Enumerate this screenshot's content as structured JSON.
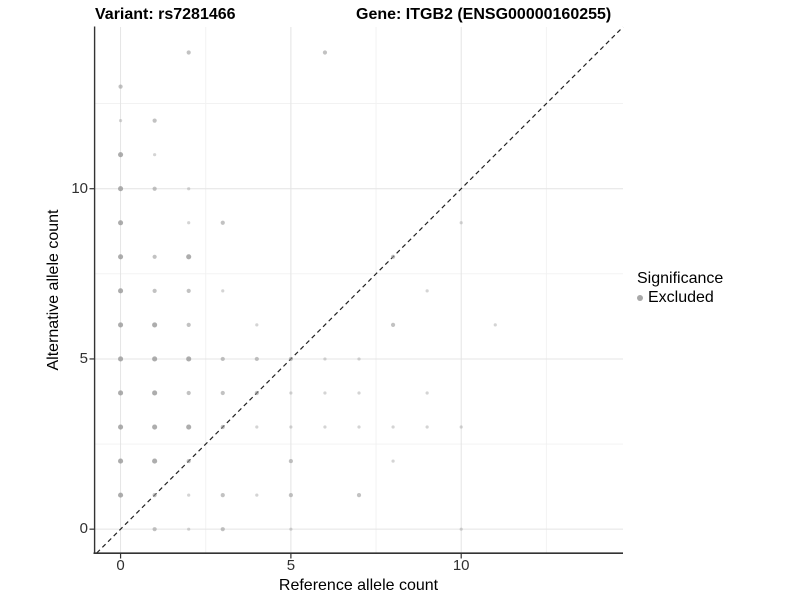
{
  "header": {
    "variant_title": "Variant: rs7281466",
    "gene_title": "Gene: ITGB2 (ENSG00000160255)"
  },
  "legend": {
    "title": "Significance",
    "items": [
      {
        "label": "Excluded",
        "color": "#a8a8a8"
      }
    ]
  },
  "colors": {
    "background": "#ffffff",
    "major_grid": "#e4e4e4",
    "minor_grid": "#f1f1f1",
    "axis_line": "#333333",
    "identity_line": "#222222",
    "point_fill": "#999999",
    "tick_text": "#303030"
  },
  "chart_data": {
    "type": "scatter",
    "title": "Variant: rs7281466   Gene: ITGB2 (ENSG00000160255)",
    "xlabel": "Reference allele count",
    "ylabel": "Alternative allele count",
    "xlim": [
      -0.78,
      14.75
    ],
    "ylim": [
      -0.7,
      14.75
    ],
    "x_ticks": [
      0,
      5,
      10
    ],
    "y_ticks": [
      0,
      5,
      10
    ],
    "x_tick_labels": [
      "0",
      "5",
      "10"
    ],
    "y_tick_labels": [
      "0",
      "5",
      "10"
    ],
    "minor_gridlines_x": [
      2.5,
      7.5,
      12.5
    ],
    "minor_gridlines_y": [
      2.5,
      7.5,
      12.5
    ],
    "grid": true,
    "legend_position": "right",
    "identity_line": {
      "style": "dashed",
      "slope": 1,
      "intercept": 0
    },
    "size_classes": {
      "1": {
        "r": 1.6,
        "o": 0.42
      },
      "2": {
        "r": 2.1,
        "o": 0.6
      },
      "3": {
        "r": 2.55,
        "o": 0.8
      }
    },
    "series": [
      {
        "name": "Excluded",
        "color": "#999999",
        "points": [
          {
            "x": 2,
            "y": 14,
            "s": 2
          },
          {
            "x": 6,
            "y": 14,
            "s": 2
          },
          {
            "x": 0,
            "y": 13,
            "s": 2
          },
          {
            "x": 0,
            "y": 12,
            "s": 1
          },
          {
            "x": 1,
            "y": 12,
            "s": 2
          },
          {
            "x": 0,
            "y": 11,
            "s": 3
          },
          {
            "x": 1,
            "y": 11,
            "s": 1
          },
          {
            "x": 0,
            "y": 10,
            "s": 3
          },
          {
            "x": 1,
            "y": 10,
            "s": 2
          },
          {
            "x": 2,
            "y": 10,
            "s": 1
          },
          {
            "x": 0,
            "y": 9,
            "s": 3
          },
          {
            "x": 2,
            "y": 9,
            "s": 1
          },
          {
            "x": 3,
            "y": 9,
            "s": 2
          },
          {
            "x": 10,
            "y": 9,
            "s": 1
          },
          {
            "x": 0,
            "y": 8,
            "s": 3
          },
          {
            "x": 1,
            "y": 8,
            "s": 2
          },
          {
            "x": 2,
            "y": 8,
            "s": 3
          },
          {
            "x": 8,
            "y": 8,
            "s": 2
          },
          {
            "x": 0,
            "y": 7,
            "s": 3
          },
          {
            "x": 1,
            "y": 7,
            "s": 2
          },
          {
            "x": 2,
            "y": 7,
            "s": 2
          },
          {
            "x": 3,
            "y": 7,
            "s": 1
          },
          {
            "x": 9,
            "y": 7,
            "s": 1
          },
          {
            "x": 0,
            "y": 6,
            "s": 3
          },
          {
            "x": 1,
            "y": 6,
            "s": 3
          },
          {
            "x": 2,
            "y": 6,
            "s": 2
          },
          {
            "x": 4,
            "y": 6,
            "s": 1
          },
          {
            "x": 8,
            "y": 6,
            "s": 2
          },
          {
            "x": 11,
            "y": 6,
            "s": 1
          },
          {
            "x": 0,
            "y": 5,
            "s": 3
          },
          {
            "x": 1,
            "y": 5,
            "s": 3
          },
          {
            "x": 2,
            "y": 5,
            "s": 3
          },
          {
            "x": 3,
            "y": 5,
            "s": 2
          },
          {
            "x": 4,
            "y": 5,
            "s": 2
          },
          {
            "x": 5,
            "y": 5,
            "s": 2
          },
          {
            "x": 6,
            "y": 5,
            "s": 1
          },
          {
            "x": 7,
            "y": 5,
            "s": 1
          },
          {
            "x": 0,
            "y": 4,
            "s": 3
          },
          {
            "x": 1,
            "y": 4,
            "s": 3
          },
          {
            "x": 2,
            "y": 4,
            "s": 2
          },
          {
            "x": 3,
            "y": 4,
            "s": 2
          },
          {
            "x": 4,
            "y": 4,
            "s": 2
          },
          {
            "x": 5,
            "y": 4,
            "s": 1
          },
          {
            "x": 6,
            "y": 4,
            "s": 1
          },
          {
            "x": 7,
            "y": 4,
            "s": 1
          },
          {
            "x": 9,
            "y": 4,
            "s": 1
          },
          {
            "x": 0,
            "y": 3,
            "s": 3
          },
          {
            "x": 1,
            "y": 3,
            "s": 3
          },
          {
            "x": 2,
            "y": 3,
            "s": 3
          },
          {
            "x": 3,
            "y": 3,
            "s": 2
          },
          {
            "x": 4,
            "y": 3,
            "s": 1
          },
          {
            "x": 5,
            "y": 3,
            "s": 1
          },
          {
            "x": 6,
            "y": 3,
            "s": 1
          },
          {
            "x": 7,
            "y": 3,
            "s": 1
          },
          {
            "x": 8,
            "y": 3,
            "s": 1
          },
          {
            "x": 9,
            "y": 3,
            "s": 1
          },
          {
            "x": 10,
            "y": 3,
            "s": 1
          },
          {
            "x": 0,
            "y": 2,
            "s": 3
          },
          {
            "x": 1,
            "y": 2,
            "s": 3
          },
          {
            "x": 2,
            "y": 2,
            "s": 2
          },
          {
            "x": 5,
            "y": 2,
            "s": 2
          },
          {
            "x": 8,
            "y": 2,
            "s": 1
          },
          {
            "x": 0,
            "y": 1,
            "s": 3
          },
          {
            "x": 1,
            "y": 1,
            "s": 2
          },
          {
            "x": 2,
            "y": 1,
            "s": 1
          },
          {
            "x": 3,
            "y": 1,
            "s": 2
          },
          {
            "x": 4,
            "y": 1,
            "s": 1
          },
          {
            "x": 5,
            "y": 1,
            "s": 2
          },
          {
            "x": 7,
            "y": 1,
            "s": 2
          },
          {
            "x": 1,
            "y": 0,
            "s": 2
          },
          {
            "x": 2,
            "y": 0,
            "s": 1
          },
          {
            "x": 3,
            "y": 0,
            "s": 2
          },
          {
            "x": 5,
            "y": 0,
            "s": 1
          },
          {
            "x": 10,
            "y": 0,
            "s": 1
          }
        ]
      }
    ]
  }
}
